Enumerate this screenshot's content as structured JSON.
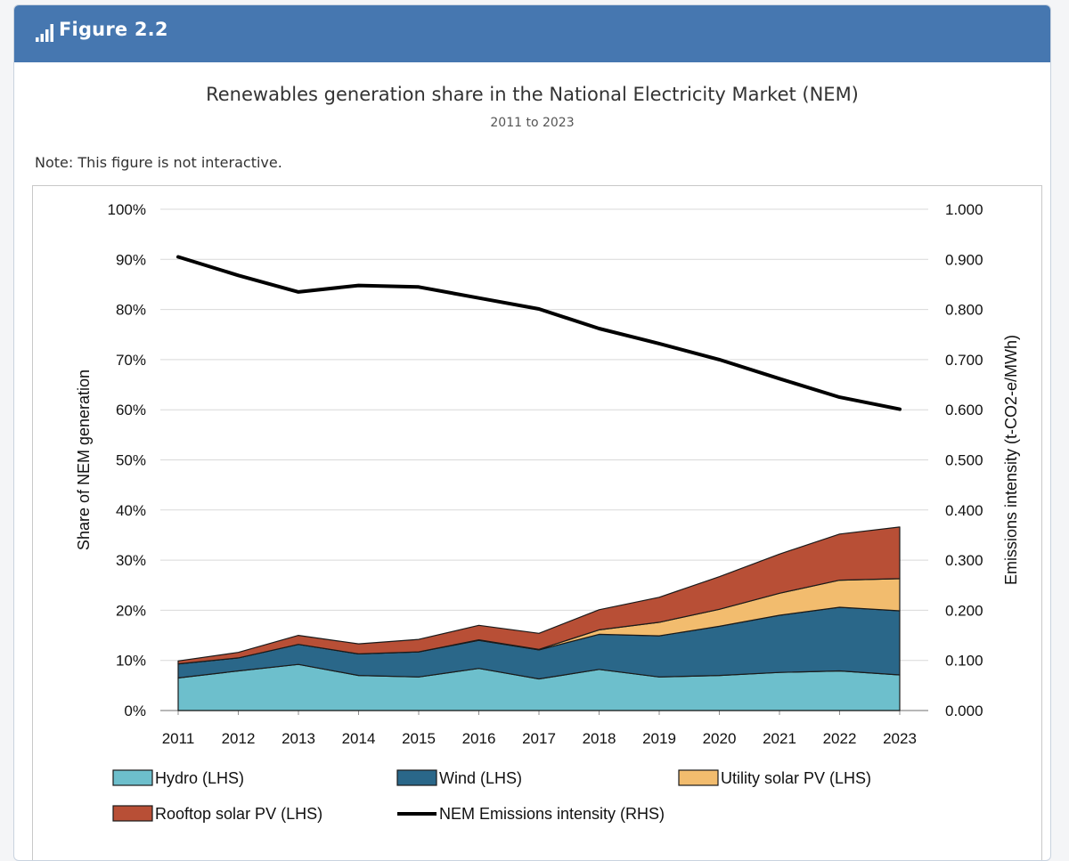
{
  "header": {
    "figure_label": "Figure 2.2",
    "icon": "bar-chart-icon",
    "background": "#4677b0"
  },
  "chart_title": "Renewables generation share in the National Electricity Market (NEM)",
  "chart_subtitle": "2011 to 2023",
  "note": "Note: This figure is not interactive.",
  "chart_data": {
    "type": "area",
    "stacked": true,
    "x": [
      "2011",
      "2012",
      "2013",
      "2014",
      "2015",
      "2016",
      "2017",
      "2018",
      "2019",
      "2020",
      "2021",
      "2022",
      "2023"
    ],
    "ylabel_left": "Share of NEM generation",
    "ylabel_right": "Emissions intensity (t-CO2-e/MWh)",
    "ylim_left": [
      0,
      100
    ],
    "ylim_right": [
      0.0,
      1.0
    ],
    "left_ticks": [
      "0%",
      "10%",
      "20%",
      "30%",
      "40%",
      "50%",
      "60%",
      "70%",
      "80%",
      "90%",
      "100%"
    ],
    "right_ticks": [
      "0.000",
      "0.100",
      "0.200",
      "0.300",
      "0.400",
      "0.500",
      "0.600",
      "0.700",
      "0.800",
      "0.900",
      "1.000"
    ],
    "grid": true,
    "legend_position": "bottom",
    "series": [
      {
        "name": "Hydro (LHS)",
        "axis": "left",
        "color": "#6dbfcc",
        "values": [
          6.5,
          7.9,
          9.2,
          7.0,
          6.7,
          8.4,
          6.3,
          8.2,
          6.7,
          7.0,
          7.6,
          7.9,
          7.1
        ]
      },
      {
        "name": "Wind (LHS)",
        "axis": "left",
        "color": "#2a6789",
        "values": [
          2.8,
          2.6,
          4.0,
          4.3,
          5.0,
          5.6,
          5.8,
          7.0,
          8.2,
          9.8,
          11.4,
          12.7,
          12.8
        ]
      },
      {
        "name": "Utility solar PV (LHS)",
        "axis": "left",
        "color": "#f2bc6e",
        "values": [
          0.0,
          0.0,
          0.0,
          0.0,
          0.0,
          0.1,
          0.1,
          0.9,
          2.7,
          3.4,
          4.4,
          5.4,
          6.4
        ]
      },
      {
        "name": "Rooftop solar PV (LHS)",
        "axis": "left",
        "color": "#b84f36",
        "values": [
          0.6,
          1.1,
          1.8,
          2.0,
          2.5,
          2.9,
          3.2,
          4.0,
          5.0,
          6.5,
          7.8,
          9.2,
          10.3
        ]
      },
      {
        "name": "NEM Emissions intensity (RHS)",
        "axis": "right",
        "color": "#000000",
        "kind": "line",
        "values": [
          0.905,
          0.868,
          0.835,
          0.848,
          0.845,
          0.823,
          0.801,
          0.762,
          0.732,
          0.7,
          0.662,
          0.625,
          0.601
        ]
      }
    ]
  }
}
